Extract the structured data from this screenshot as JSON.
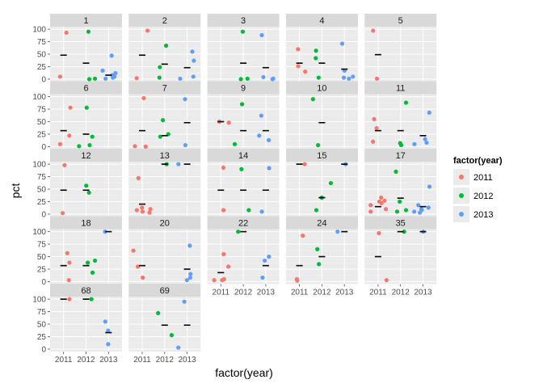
{
  "chart_data": {
    "type": "scatter",
    "kind": "faceted jittered scatter with median markers",
    "xlabel": "factor(year)",
    "ylabel": "pct",
    "x_categories": [
      "2011",
      "2012",
      "2013"
    ],
    "ylim": [
      0,
      100
    ],
    "y_ticks": [
      0,
      25,
      50,
      75,
      100
    ],
    "grid": true,
    "legend": {
      "title": "factor(year)",
      "position": "right",
      "entries": [
        {
          "label": "2011",
          "color": "#F8766D"
        },
        {
          "label": "2012",
          "color": "#00BA38"
        },
        {
          "label": "2013",
          "color": "#619CFF"
        }
      ]
    },
    "facets": [
      {
        "label": "1",
        "points": [
          {
            "year": "2011",
            "y": 93
          },
          {
            "year": "2011",
            "y": 5
          },
          {
            "year": "2012",
            "y": 95
          },
          {
            "year": "2012",
            "y": 1
          },
          {
            "year": "2012",
            "y": 0
          },
          {
            "year": "2013",
            "y": 47
          },
          {
            "year": "2013",
            "y": 17
          },
          {
            "year": "2013",
            "y": 12
          },
          {
            "year": "2013",
            "y": 8
          },
          {
            "year": "2013",
            "y": 5
          },
          {
            "year": "2013",
            "y": 3
          },
          {
            "year": "2013",
            "y": 1
          }
        ],
        "medians": {
          "2011": 48,
          "2012": 32,
          "2013": 8
        }
      },
      {
        "label": "2",
        "points": [
          {
            "year": "2011",
            "y": 97
          },
          {
            "year": "2011",
            "y": 2
          },
          {
            "year": "2012",
            "y": 67
          },
          {
            "year": "2012",
            "y": 24
          },
          {
            "year": "2012",
            "y": 3
          },
          {
            "year": "2013",
            "y": 55
          },
          {
            "year": "2013",
            "y": 37
          },
          {
            "year": "2013",
            "y": 5
          },
          {
            "year": "2013",
            "y": 1
          }
        ],
        "medians": {
          "2011": 48,
          "2012": 30,
          "2013": 23
        }
      },
      {
        "label": "3",
        "points": [
          {
            "year": "2012",
            "y": 95
          },
          {
            "year": "2012",
            "y": 1
          },
          {
            "year": "2012",
            "y": 0
          },
          {
            "year": "2013",
            "y": 88
          },
          {
            "year": "2013",
            "y": 4
          },
          {
            "year": "2013",
            "y": 1
          },
          {
            "year": "2013",
            "y": 0
          }
        ],
        "medians": {
          "2012": 32,
          "2013": 23
        }
      },
      {
        "label": "4",
        "points": [
          {
            "year": "2011",
            "y": 60
          },
          {
            "year": "2011",
            "y": 26
          },
          {
            "year": "2011",
            "y": 15
          },
          {
            "year": "2012",
            "y": 57
          },
          {
            "year": "2012",
            "y": 42
          },
          {
            "year": "2012",
            "y": 3
          },
          {
            "year": "2013",
            "y": 71
          },
          {
            "year": "2013",
            "y": 17
          },
          {
            "year": "2013",
            "y": 5
          },
          {
            "year": "2013",
            "y": 3
          },
          {
            "year": "2013",
            "y": 1
          }
        ],
        "medians": {
          "2011": 32,
          "2012": 32,
          "2013": 20
        }
      },
      {
        "label": "5",
        "points": [
          {
            "year": "2011",
            "y": 97
          },
          {
            "year": "2011",
            "y": 1
          }
        ],
        "medians": {
          "2011": 49
        }
      },
      {
        "label": "6",
        "points": [
          {
            "year": "2011",
            "y": 78
          },
          {
            "year": "2011",
            "y": 22
          },
          {
            "year": "2011",
            "y": 5
          },
          {
            "year": "2012",
            "y": 78
          },
          {
            "year": "2012",
            "y": 20
          },
          {
            "year": "2012",
            "y": 3
          },
          {
            "year": "2012",
            "y": 1
          }
        ],
        "medians": {
          "2011": 32,
          "2012": 25
        }
      },
      {
        "label": "7",
        "points": [
          {
            "year": "2011",
            "y": 97
          },
          {
            "year": "2011",
            "y": 1
          },
          {
            "year": "2011",
            "y": 0
          },
          {
            "year": "2012",
            "y": 53
          },
          {
            "year": "2012",
            "y": 25
          },
          {
            "year": "2012",
            "y": 20
          },
          {
            "year": "2013",
            "y": 95
          },
          {
            "year": "2013",
            "y": 3
          }
        ],
        "medians": {
          "2011": 32,
          "2012": 22,
          "2013": 48
        }
      },
      {
        "label": "9",
        "points": [
          {
            "year": "2011",
            "y": 50
          },
          {
            "year": "2011",
            "y": 48
          },
          {
            "year": "2012",
            "y": 85
          },
          {
            "year": "2012",
            "y": 5
          },
          {
            "year": "2013",
            "y": 62
          },
          {
            "year": "2013",
            "y": 22
          },
          {
            "year": "2013",
            "y": 13
          }
        ],
        "medians": {
          "2011": 50,
          "2012": 32,
          "2013": 32
        }
      },
      {
        "label": "10",
        "points": [
          {
            "year": "2012",
            "y": 95
          },
          {
            "year": "2012",
            "y": 3
          }
        ],
        "medians": {
          "2012": 48
        }
      },
      {
        "label": "11",
        "points": [
          {
            "year": "2011",
            "y": 55
          },
          {
            "year": "2011",
            "y": 37
          },
          {
            "year": "2011",
            "y": 10
          },
          {
            "year": "2012",
            "y": 88
          },
          {
            "year": "2012",
            "y": 7
          },
          {
            "year": "2012",
            "y": 3
          },
          {
            "year": "2013",
            "y": 68
          },
          {
            "year": "2013",
            "y": 15
          },
          {
            "year": "2013",
            "y": 8
          },
          {
            "year": "2013",
            "y": 5
          }
        ],
        "medians": {
          "2011": 32,
          "2012": 32,
          "2013": 22
        }
      },
      {
        "label": "12",
        "points": [
          {
            "year": "2011",
            "y": 98
          },
          {
            "year": "2011",
            "y": 2
          },
          {
            "year": "2012",
            "y": 57
          },
          {
            "year": "2012",
            "y": 43
          }
        ],
        "medians": {
          "2011": 48,
          "2012": 48
        }
      },
      {
        "label": "13",
        "points": [
          {
            "year": "2011",
            "y": 72
          },
          {
            "year": "2011",
            "y": 13
          },
          {
            "year": "2011",
            "y": 10
          },
          {
            "year": "2011",
            "y": 8
          },
          {
            "year": "2011",
            "y": 5
          },
          {
            "year": "2011",
            "y": 3
          },
          {
            "year": "2012",
            "y": 100
          },
          {
            "year": "2013",
            "y": 100
          }
        ],
        "medians": {
          "2011": 20,
          "2012": 100,
          "2013": 100
        }
      },
      {
        "label": "14",
        "points": [
          {
            "year": "2011",
            "y": 93
          },
          {
            "year": "2011",
            "y": 8
          },
          {
            "year": "2012",
            "y": 90
          },
          {
            "year": "2012",
            "y": 8
          },
          {
            "year": "2013",
            "y": 92
          },
          {
            "year": "2013",
            "y": 5
          }
        ],
        "medians": {
          "2011": 48,
          "2012": 48,
          "2013": 48
        }
      },
      {
        "label": "15",
        "points": [
          {
            "year": "2011",
            "y": 100
          },
          {
            "year": "2012",
            "y": 62
          },
          {
            "year": "2012",
            "y": 33
          },
          {
            "year": "2012",
            "y": 8
          },
          {
            "year": "2013",
            "y": 100
          }
        ],
        "medians": {
          "2011": 100,
          "2012": 33,
          "2013": 100
        }
      },
      {
        "label": "17",
        "points": [
          {
            "year": "2011",
            "y": 33
          },
          {
            "year": "2011",
            "y": 27
          },
          {
            "year": "2011",
            "y": 25
          },
          {
            "year": "2011",
            "y": 22
          },
          {
            "year": "2011",
            "y": 18
          },
          {
            "year": "2011",
            "y": 10
          },
          {
            "year": "2011",
            "y": 5
          },
          {
            "year": "2012",
            "y": 85
          },
          {
            "year": "2012",
            "y": 25
          },
          {
            "year": "2012",
            "y": 8
          },
          {
            "year": "2012",
            "y": 5
          },
          {
            "year": "2013",
            "y": 55
          },
          {
            "year": "2013",
            "y": 18
          },
          {
            "year": "2013",
            "y": 13
          },
          {
            "year": "2013",
            "y": 10
          },
          {
            "year": "2013",
            "y": 8
          },
          {
            "year": "2013",
            "y": 5
          },
          {
            "year": "2013",
            "y": 3
          }
        ],
        "medians": {
          "2011": 15,
          "2012": 32,
          "2013": 15
        }
      },
      {
        "label": "18",
        "points": [
          {
            "year": "2011",
            "y": 57
          },
          {
            "year": "2011",
            "y": 38
          },
          {
            "year": "2011",
            "y": 3
          },
          {
            "year": "2012",
            "y": 42
          },
          {
            "year": "2012",
            "y": 38
          },
          {
            "year": "2012",
            "y": 18
          },
          {
            "year": "2013",
            "y": 100
          }
        ],
        "medians": {
          "2011": 32,
          "2012": 32,
          "2013": 100
        }
      },
      {
        "label": "20",
        "points": [
          {
            "year": "2011",
            "y": 62
          },
          {
            "year": "2011",
            "y": 30
          },
          {
            "year": "2011",
            "y": 8
          },
          {
            "year": "2013",
            "y": 72
          },
          {
            "year": "2013",
            "y": 15
          },
          {
            "year": "2013",
            "y": 8
          },
          {
            "year": "2013",
            "y": 3
          }
        ],
        "medians": {
          "2011": 32,
          "2013": 25
        }
      },
      {
        "label": "22",
        "points": [
          {
            "year": "2011",
            "y": 55
          },
          {
            "year": "2011",
            "y": 30
          },
          {
            "year": "2011",
            "y": 5
          },
          {
            "year": "2011",
            "y": 3
          },
          {
            "year": "2011",
            "y": 3
          },
          {
            "year": "2012",
            "y": 100
          },
          {
            "year": "2013",
            "y": 50
          },
          {
            "year": "2013",
            "y": 42
          },
          {
            "year": "2013",
            "y": 8
          }
        ],
        "medians": {
          "2011": 18,
          "2012": 100,
          "2013": 32
        }
      },
      {
        "label": "24",
        "points": [
          {
            "year": "2011",
            "y": 92
          },
          {
            "year": "2011",
            "y": 5
          },
          {
            "year": "2011",
            "y": 2
          },
          {
            "year": "2012",
            "y": 65
          },
          {
            "year": "2012",
            "y": 35
          },
          {
            "year": "2013",
            "y": 100
          }
        ],
        "medians": {
          "2011": 32,
          "2012": 50,
          "2013": 100
        }
      },
      {
        "label": "35",
        "points": [
          {
            "year": "2011",
            "y": 97
          },
          {
            "year": "2011",
            "y": 3
          },
          {
            "year": "2012",
            "y": 100
          },
          {
            "year": "2013",
            "y": 100
          }
        ],
        "medians": {
          "2011": 50,
          "2012": 100,
          "2013": 100
        }
      },
      {
        "label": "68",
        "points": [
          {
            "year": "2011",
            "y": 100
          },
          {
            "year": "2012",
            "y": 100
          },
          {
            "year": "2013",
            "y": 55
          },
          {
            "year": "2013",
            "y": 37
          },
          {
            "year": "2013",
            "y": 10
          }
        ],
        "medians": {
          "2011": 100,
          "2012": 100,
          "2013": 33
        }
      },
      {
        "label": "69",
        "points": [
          {
            "year": "2012",
            "y": 72
          },
          {
            "year": "2012",
            "y": 28
          },
          {
            "year": "2013",
            "y": 95
          },
          {
            "year": "2013",
            "y": 3
          }
        ],
        "medians": {
          "2012": 48,
          "2013": 48
        }
      }
    ]
  },
  "colors": {
    "panel_background": "#EBEBEB",
    "strip_background": "#D9D9D9",
    "grid_major": "#FFFFFF",
    "grid_minor": "#F2F2F2",
    "median_marker": "#000000"
  }
}
